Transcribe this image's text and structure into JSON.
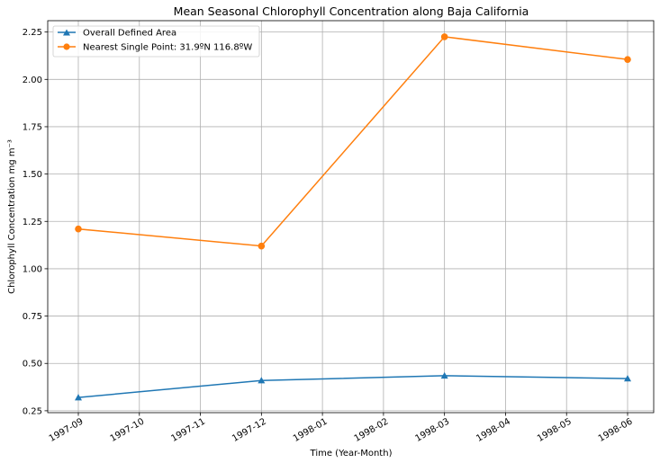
{
  "chart_data": {
    "type": "line",
    "title": "Mean Seasonal Chlorophyll Concentration along Baja California",
    "xlabel": "Time (Year-Month)",
    "ylabel": "Chlorophyll Concentration mg m⁻³",
    "x_ticks": [
      "1997-09",
      "1997-10",
      "1997-11",
      "1997-12",
      "1998-01",
      "1998-02",
      "1998-03",
      "1998-04",
      "1998-05",
      "1998-06"
    ],
    "y_ticks": [
      "0.25",
      "0.50",
      "0.75",
      "1.00",
      "1.25",
      "1.50",
      "1.75",
      "2.00",
      "2.25"
    ],
    "ylim": [
      0.24,
      2.31
    ],
    "xlim": [
      "1997-09",
      "1998-06"
    ],
    "x": [
      "1997-09",
      "1997-12",
      "1998-03",
      "1998-06"
    ],
    "grid": true,
    "legend_position": "top-left",
    "series": [
      {
        "name": "Overall Defined Area",
        "marker": "triangle",
        "color": "#1f77b4",
        "values": [
          0.32,
          0.41,
          0.435,
          0.42
        ]
      },
      {
        "name": "Nearest Single Point: 31.9ºN 116.8ºW",
        "marker": "circle",
        "color": "#ff7f0e",
        "values": [
          1.21,
          1.12,
          2.225,
          2.105
        ]
      }
    ]
  }
}
